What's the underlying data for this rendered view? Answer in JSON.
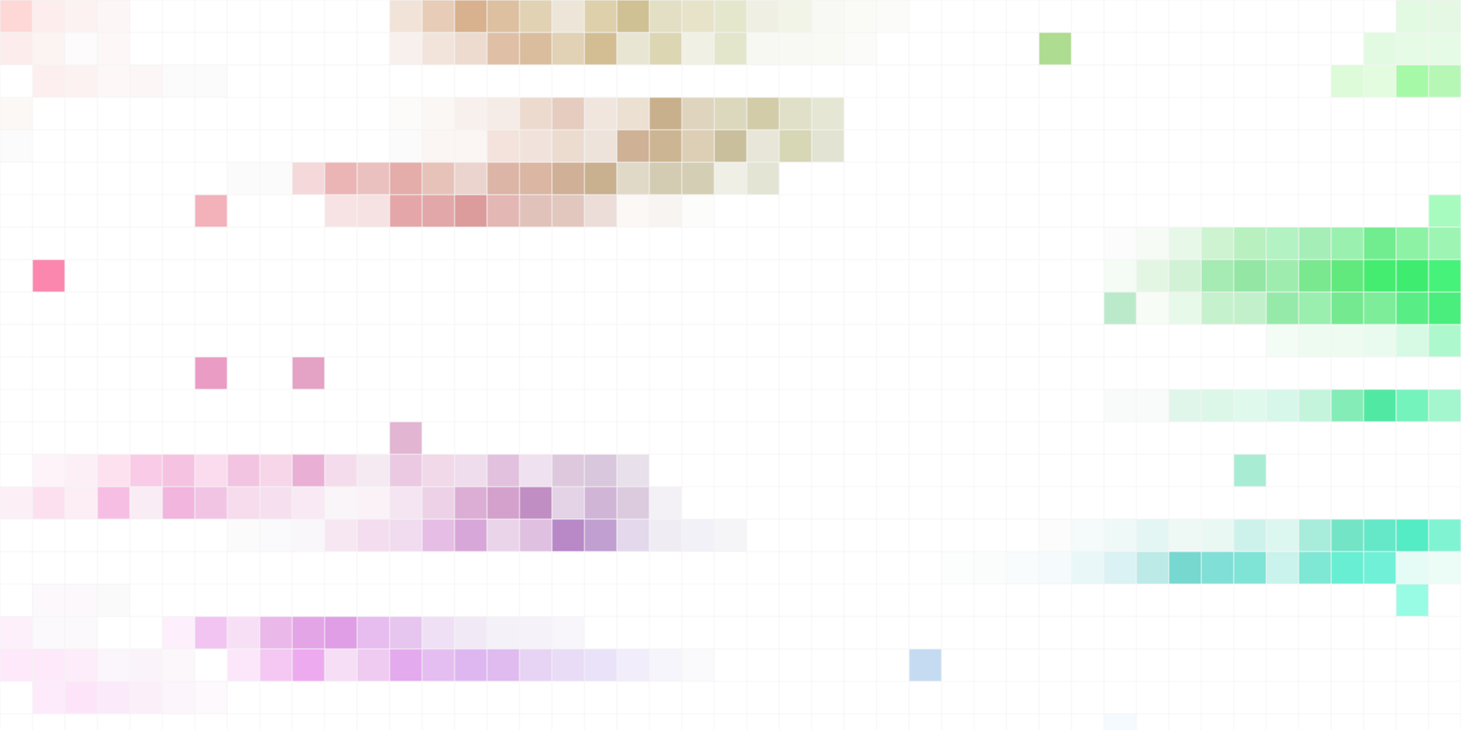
{
  "chart_data": {
    "type": "heatmap",
    "title": "",
    "xlabel": "",
    "ylabel": "",
    "n_cols": 45,
    "n_rows": 23,
    "grid": true,
    "legend": "none",
    "background": "#ffffff",
    "colors": {
      "pink": "#ff8aaf",
      "tan": "#cdb889",
      "green": "#3dee78",
      "teal": "#54e7bd",
      "magenta": "#dd9ee8",
      "blue": "#c5dbf2"
    },
    "cells": [
      [
        0,
        0,
        "#fed7d7"
      ],
      [
        1,
        0,
        "#fdeded"
      ],
      [
        2,
        0,
        "#fcf2f2"
      ],
      [
        3,
        0,
        "#fdf6f6"
      ],
      [
        12,
        0,
        "#f2e3d8"
      ],
      [
        13,
        0,
        "#e7ccb7"
      ],
      [
        14,
        0,
        "#d8b18e"
      ],
      [
        15,
        0,
        "#dcc0a0"
      ],
      [
        16,
        0,
        "#e2d2b4"
      ],
      [
        17,
        0,
        "#ede5d7"
      ],
      [
        18,
        0,
        "#ddd0ab"
      ],
      [
        19,
        0,
        "#cfc193"
      ],
      [
        20,
        0,
        "#e2dfc5"
      ],
      [
        21,
        0,
        "#e6e3c9"
      ],
      [
        22,
        0,
        "#e5e7cd"
      ],
      [
        23,
        0,
        "#eff0e3"
      ],
      [
        24,
        0,
        "#f1f4e6"
      ],
      [
        25,
        0,
        "#f8f9f4"
      ],
      [
        26,
        0,
        "#fafbf7"
      ],
      [
        27,
        0,
        "#fbfcf9"
      ],
      [
        43,
        0,
        "#e2f9e2"
      ],
      [
        44,
        0,
        "#e4f8e4"
      ],
      [
        0,
        1,
        "#fdecec"
      ],
      [
        1,
        1,
        "#fcf3f3"
      ],
      [
        2,
        1,
        "#fdfbfb"
      ],
      [
        3,
        1,
        "#fdf7f7"
      ],
      [
        12,
        1,
        "#f8f0ed"
      ],
      [
        13,
        1,
        "#f2e4da"
      ],
      [
        14,
        1,
        "#eddbd0"
      ],
      [
        15,
        1,
        "#dfc0a6"
      ],
      [
        16,
        1,
        "#dabd9d"
      ],
      [
        17,
        1,
        "#e1d1b5"
      ],
      [
        18,
        1,
        "#d3be93"
      ],
      [
        19,
        1,
        "#e9e5d3"
      ],
      [
        20,
        1,
        "#dcd6b3"
      ],
      [
        21,
        1,
        "#f0f0e5"
      ],
      [
        22,
        1,
        "#e3e6cb"
      ],
      [
        23,
        1,
        "#f6f8f1"
      ],
      [
        24,
        1,
        "#f7f9f2"
      ],
      [
        25,
        1,
        "#f8faf3"
      ],
      [
        26,
        1,
        "#fbfcf9"
      ],
      [
        32,
        1,
        "#aedc90"
      ],
      [
        42,
        1,
        "#e3fae2"
      ],
      [
        43,
        1,
        "#e6fbe5"
      ],
      [
        44,
        1,
        "#e6fbe5"
      ],
      [
        1,
        2,
        "#fdefef"
      ],
      [
        2,
        2,
        "#fdf2f2"
      ],
      [
        3,
        2,
        "#fdf7f7"
      ],
      [
        4,
        2,
        "#fcf6f6"
      ],
      [
        5,
        2,
        "#fbfbfb"
      ],
      [
        6,
        2,
        "#fbfbfb"
      ],
      [
        41,
        2,
        "#ddfad9"
      ],
      [
        42,
        2,
        "#e3fbdf"
      ],
      [
        43,
        2,
        "#a6f9a6"
      ],
      [
        44,
        2,
        "#b6f7b6"
      ],
      [
        0,
        3,
        "#fcf8f6"
      ],
      [
        12,
        3,
        "#fdfafa"
      ],
      [
        13,
        3,
        "#fbf7f5"
      ],
      [
        14,
        3,
        "#f8f0ed"
      ],
      [
        15,
        3,
        "#f5ece7"
      ],
      [
        16,
        3,
        "#eddacf"
      ],
      [
        17,
        3,
        "#e5ccbe"
      ],
      [
        18,
        3,
        "#f0e6de"
      ],
      [
        19,
        3,
        "#ebe0d2"
      ],
      [
        20,
        3,
        "#c9b08d"
      ],
      [
        21,
        3,
        "#dfd4bd"
      ],
      [
        22,
        3,
        "#dcd8bd"
      ],
      [
        23,
        3,
        "#d3cca9"
      ],
      [
        24,
        3,
        "#e0dfc7"
      ],
      [
        25,
        3,
        "#e5e7d4"
      ],
      [
        0,
        4,
        "#fcfbfb"
      ],
      [
        12,
        4,
        "#fcfbfb"
      ],
      [
        13,
        4,
        "#fbf5f3"
      ],
      [
        14,
        4,
        "#fbf5f3"
      ],
      [
        15,
        4,
        "#f3e3dc"
      ],
      [
        16,
        4,
        "#f1e3dc"
      ],
      [
        17,
        4,
        "#ecdbcf"
      ],
      [
        18,
        4,
        "#ede3da"
      ],
      [
        19,
        4,
        "#cfb196"
      ],
      [
        20,
        4,
        "#ccb593"
      ],
      [
        21,
        4,
        "#ddcfb5"
      ],
      [
        22,
        4,
        "#cabf9c"
      ],
      [
        23,
        4,
        "#e7e6d8"
      ],
      [
        24,
        4,
        "#d7d6b5"
      ],
      [
        25,
        4,
        "#e3e3d3"
      ],
      [
        7,
        5,
        "#fcfbfb"
      ],
      [
        8,
        5,
        "#fcfbfb"
      ],
      [
        9,
        5,
        "#f5d9da"
      ],
      [
        10,
        5,
        "#ecb5b5"
      ],
      [
        11,
        5,
        "#ebc1c0"
      ],
      [
        12,
        5,
        "#e4adaa"
      ],
      [
        13,
        5,
        "#e6c2b9"
      ],
      [
        14,
        5,
        "#ebd4cd"
      ],
      [
        15,
        5,
        "#dcb5a6"
      ],
      [
        16,
        5,
        "#dab6a3"
      ],
      [
        17,
        5,
        "#d0b097"
      ],
      [
        18,
        5,
        "#c9b08f"
      ],
      [
        19,
        5,
        "#e1d9c7"
      ],
      [
        20,
        5,
        "#d3ccb2"
      ],
      [
        21,
        5,
        "#d4ceb4"
      ],
      [
        22,
        5,
        "#efefe6"
      ],
      [
        23,
        5,
        "#e4e4d4"
      ],
      [
        6,
        6,
        "#f3b1b9"
      ],
      [
        10,
        6,
        "#f7e3e4"
      ],
      [
        11,
        6,
        "#f6e2e3"
      ],
      [
        12,
        6,
        "#e5a6a9"
      ],
      [
        13,
        6,
        "#e2a7a8"
      ],
      [
        14,
        6,
        "#db9c9b"
      ],
      [
        15,
        6,
        "#e3b7b4"
      ],
      [
        16,
        6,
        "#e1c2bb"
      ],
      [
        17,
        6,
        "#e2c7bf"
      ],
      [
        18,
        6,
        "#ecddd8"
      ],
      [
        19,
        6,
        "#fbf8f6"
      ],
      [
        20,
        6,
        "#f8f4f2"
      ],
      [
        21,
        6,
        "#fcfcfb"
      ],
      [
        44,
        6,
        "#a8fbbf"
      ],
      [
        34,
        7,
        "#fbfcfb"
      ],
      [
        35,
        7,
        "#f6fbf6"
      ],
      [
        36,
        7,
        "#e7f8e8"
      ],
      [
        37,
        7,
        "#cdf3d1"
      ],
      [
        38,
        7,
        "#b8f0c0"
      ],
      [
        39,
        7,
        "#b3f2c2"
      ],
      [
        40,
        7,
        "#a6eeb7"
      ],
      [
        41,
        7,
        "#9af0ae"
      ],
      [
        42,
        7,
        "#71ec8f"
      ],
      [
        43,
        7,
        "#8df2a4"
      ],
      [
        44,
        7,
        "#9ef5b3"
      ],
      [
        1,
        8,
        "#fc87ae"
      ],
      [
        34,
        8,
        "#f5fbf5"
      ],
      [
        35,
        8,
        "#e3f6e4"
      ],
      [
        36,
        8,
        "#d2f2d5"
      ],
      [
        37,
        8,
        "#a6eab4"
      ],
      [
        38,
        8,
        "#93e6a4"
      ],
      [
        39,
        8,
        "#9fecaf"
      ],
      [
        40,
        8,
        "#79e88f"
      ],
      [
        41,
        8,
        "#62e97d"
      ],
      [
        42,
        8,
        "#44ed6f"
      ],
      [
        43,
        8,
        "#3eed70"
      ],
      [
        44,
        8,
        "#47f27a"
      ],
      [
        34,
        9,
        "#bbeacb"
      ],
      [
        35,
        9,
        "#f7fcf7"
      ],
      [
        36,
        9,
        "#e7f9e8"
      ],
      [
        37,
        9,
        "#c6f1cd"
      ],
      [
        38,
        9,
        "#c2f0cb"
      ],
      [
        39,
        9,
        "#96eaa9"
      ],
      [
        40,
        9,
        "#9aeeae"
      ],
      [
        41,
        9,
        "#74e990"
      ],
      [
        42,
        9,
        "#7eed9a"
      ],
      [
        43,
        9,
        "#58ee85"
      ],
      [
        44,
        9,
        "#4aee7d"
      ],
      [
        39,
        10,
        "#f4fcf6"
      ],
      [
        40,
        10,
        "#edfbf0"
      ],
      [
        41,
        10,
        "#edfbf0"
      ],
      [
        42,
        10,
        "#e8fbee"
      ],
      [
        43,
        10,
        "#d6fae3"
      ],
      [
        44,
        10,
        "#adf9cd"
      ],
      [
        6,
        11,
        "#eb9cc5"
      ],
      [
        9,
        11,
        "#e4a2c4"
      ],
      [
        34,
        12,
        "#f9fbfa"
      ],
      [
        35,
        12,
        "#f8fbf9"
      ],
      [
        36,
        12,
        "#e1f6eb"
      ],
      [
        37,
        12,
        "#dcf6e8"
      ],
      [
        38,
        12,
        "#dff9ed"
      ],
      [
        39,
        12,
        "#d7f7ea"
      ],
      [
        40,
        12,
        "#c5f4dd"
      ],
      [
        41,
        12,
        "#84ecb6"
      ],
      [
        42,
        12,
        "#51e8a3"
      ],
      [
        43,
        12,
        "#75f3bd"
      ],
      [
        44,
        12,
        "#a3f6cd"
      ],
      [
        12,
        13,
        "#e2b5d2"
      ],
      [
        1,
        14,
        "#fdf3f8"
      ],
      [
        2,
        14,
        "#fdeff6"
      ],
      [
        3,
        14,
        "#fde1ef"
      ],
      [
        4,
        14,
        "#f9cbe6"
      ],
      [
        5,
        14,
        "#f6c2e1"
      ],
      [
        6,
        14,
        "#fbdbee"
      ],
      [
        7,
        14,
        "#f3c4e1"
      ],
      [
        8,
        14,
        "#f7d6e9"
      ],
      [
        9,
        14,
        "#eaafd5"
      ],
      [
        10,
        14,
        "#f5dcec"
      ],
      [
        11,
        14,
        "#f5e9f2"
      ],
      [
        12,
        14,
        "#ecc9e2"
      ],
      [
        13,
        14,
        "#f1d9e9"
      ],
      [
        14,
        14,
        "#efdced"
      ],
      [
        15,
        14,
        "#e1c1dd"
      ],
      [
        16,
        14,
        "#efe1ef"
      ],
      [
        17,
        14,
        "#dec8de"
      ],
      [
        18,
        14,
        "#d9c7dd"
      ],
      [
        19,
        14,
        "#e8e0ea"
      ],
      [
        38,
        14,
        "#a8ecd4"
      ],
      [
        0,
        15,
        "#fdeff6"
      ],
      [
        1,
        15,
        "#fde0f0"
      ],
      [
        2,
        15,
        "#fdedf5"
      ],
      [
        3,
        15,
        "#f7bee3"
      ],
      [
        4,
        15,
        "#f9ecf5"
      ],
      [
        5,
        15,
        "#f1b5de"
      ],
      [
        6,
        15,
        "#f1c4e4"
      ],
      [
        7,
        15,
        "#f6dced"
      ],
      [
        8,
        15,
        "#f6e0ef"
      ],
      [
        9,
        15,
        "#f9e9f4"
      ],
      [
        10,
        15,
        "#faf5f9"
      ],
      [
        11,
        15,
        "#faf2f7"
      ],
      [
        12,
        15,
        "#f5e4f1"
      ],
      [
        13,
        15,
        "#edd1e7"
      ],
      [
        14,
        15,
        "#ddaed5"
      ],
      [
        15,
        15,
        "#d4a1cd"
      ],
      [
        16,
        15,
        "#c18ec4"
      ],
      [
        17,
        15,
        "#e4d2e6"
      ],
      [
        18,
        15,
        "#d1b5d7"
      ],
      [
        19,
        15,
        "#dccbdf"
      ],
      [
        20,
        15,
        "#f3f1f5"
      ],
      [
        7,
        16,
        "#fbfbfc"
      ],
      [
        8,
        16,
        "#faf9fb"
      ],
      [
        9,
        16,
        "#faf7fb"
      ],
      [
        10,
        16,
        "#f6e7f3"
      ],
      [
        11,
        16,
        "#f3ddef"
      ],
      [
        12,
        16,
        "#f1dbef"
      ],
      [
        13,
        16,
        "#e6bde5"
      ],
      [
        14,
        16,
        "#d8a7d9"
      ],
      [
        15,
        16,
        "#e9d4ea"
      ],
      [
        16,
        16,
        "#dfc0e0"
      ],
      [
        17,
        16,
        "#b888c7"
      ],
      [
        18,
        16,
        "#c19fd1"
      ],
      [
        19,
        16,
        "#e4d8ec"
      ],
      [
        20,
        16,
        "#efecf4"
      ],
      [
        21,
        16,
        "#f2f1f7"
      ],
      [
        22,
        16,
        "#f5f5f8"
      ],
      [
        32,
        16,
        "#fbfcfb"
      ],
      [
        33,
        16,
        "#f4fbfa"
      ],
      [
        34,
        16,
        "#eff9f8"
      ],
      [
        35,
        16,
        "#e3f6f3"
      ],
      [
        36,
        16,
        "#eef9f6"
      ],
      [
        37,
        16,
        "#e9f8f3"
      ],
      [
        38,
        16,
        "#cdf2eb"
      ],
      [
        39,
        16,
        "#dbf7ef"
      ],
      [
        40,
        16,
        "#a8ecdc"
      ],
      [
        41,
        16,
        "#74e4c6"
      ],
      [
        42,
        16,
        "#65e8c8"
      ],
      [
        43,
        16,
        "#54ecc4"
      ],
      [
        44,
        16,
        "#80f4d2"
      ],
      [
        44,
        16,
        "#80f4d2"
      ],
      [
        29,
        17,
        "#fcfdfd"
      ],
      [
        30,
        17,
        "#fbfdfd"
      ],
      [
        31,
        17,
        "#f8fcfd"
      ],
      [
        32,
        17,
        "#f5fbfc"
      ],
      [
        33,
        17,
        "#eaf7f9"
      ],
      [
        34,
        17,
        "#daf2f4"
      ],
      [
        35,
        17,
        "#bceae6"
      ],
      [
        36,
        17,
        "#77d8d0"
      ],
      [
        37,
        17,
        "#80dfd6"
      ],
      [
        38,
        17,
        "#7fe3d6"
      ],
      [
        39,
        17,
        "#c9f3ec"
      ],
      [
        40,
        17,
        "#7ee8d5"
      ],
      [
        41,
        17,
        "#67eed3"
      ],
      [
        42,
        17,
        "#6ff0d7"
      ],
      [
        43,
        17,
        "#e4fbf6"
      ],
      [
        44,
        17,
        "#ecfcf7"
      ],
      [
        1,
        18,
        "#fdf8fc"
      ],
      [
        2,
        18,
        "#fcf8fb"
      ],
      [
        3,
        18,
        "#fbfafb"
      ],
      [
        43,
        18,
        "#98fbe3"
      ],
      [
        0,
        19,
        "#fdf0fb"
      ],
      [
        1,
        19,
        "#fbf9fb"
      ],
      [
        2,
        19,
        "#fbf9fb"
      ],
      [
        5,
        19,
        "#fdeffb"
      ],
      [
        6,
        19,
        "#f2c4f1"
      ],
      [
        7,
        19,
        "#f7e0f6"
      ],
      [
        8,
        19,
        "#ebb8ea"
      ],
      [
        9,
        19,
        "#e4a5e7"
      ],
      [
        10,
        19,
        "#df9ee6"
      ],
      [
        11,
        19,
        "#e7bcef"
      ],
      [
        12,
        19,
        "#e6c5ef"
      ],
      [
        13,
        19,
        "#efe0f6"
      ],
      [
        14,
        19,
        "#f2e9f7"
      ],
      [
        15,
        19,
        "#f5f1f9"
      ],
      [
        16,
        19,
        "#f5f2f9"
      ],
      [
        17,
        19,
        "#f8f6fb"
      ],
      [
        0,
        20,
        "#fde9fa"
      ],
      [
        1,
        20,
        "#fde9f9"
      ],
      [
        2,
        20,
        "#fdecf9"
      ],
      [
        3,
        20,
        "#fbf6fb"
      ],
      [
        4,
        20,
        "#fbf3fa"
      ],
      [
        5,
        20,
        "#fbf7fb"
      ],
      [
        7,
        20,
        "#fbe7f9"
      ],
      [
        8,
        20,
        "#f4c8f2"
      ],
      [
        9,
        20,
        "#eeaaef"
      ],
      [
        10,
        20,
        "#f6def6"
      ],
      [
        11,
        20,
        "#efcaf1"
      ],
      [
        12,
        20,
        "#e3aaee"
      ],
      [
        13,
        20,
        "#e4bdf1"
      ],
      [
        14,
        20,
        "#deb7f0"
      ],
      [
        15,
        20,
        "#dfbbf0"
      ],
      [
        16,
        20,
        "#e7d3f4"
      ],
      [
        17,
        20,
        "#e8dcf7"
      ],
      [
        18,
        20,
        "#eae2f8"
      ],
      [
        19,
        20,
        "#f1edfa"
      ],
      [
        20,
        20,
        "#f6f5fb"
      ],
      [
        21,
        20,
        "#fafafc"
      ],
      [
        28,
        20,
        "#c5dbf2"
      ],
      [
        1,
        21,
        "#fdeafb"
      ],
      [
        2,
        21,
        "#fde4f9"
      ],
      [
        3,
        21,
        "#fbeafa"
      ],
      [
        4,
        21,
        "#fbf0fa"
      ],
      [
        5,
        21,
        "#fcf5fb"
      ],
      [
        6,
        21,
        "#fdf9fd"
      ],
      [
        34,
        22,
        "#f4fafd"
      ]
    ]
  }
}
